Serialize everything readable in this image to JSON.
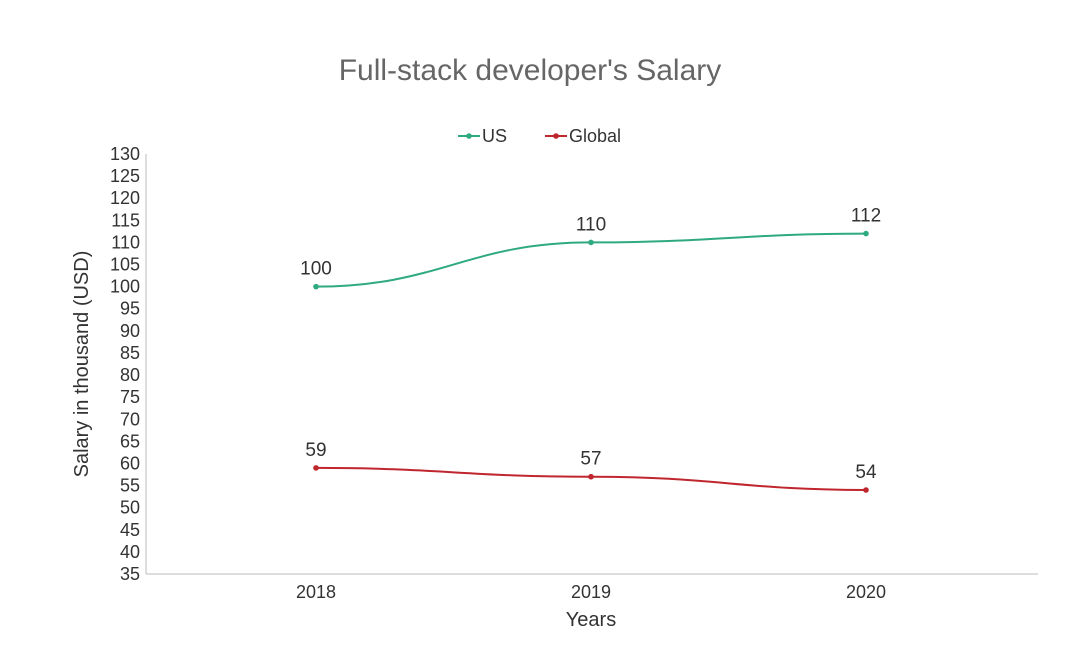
{
  "chart_data": {
    "type": "line",
    "title": "Full-stack developer's Salary",
    "xlabel": "Years",
    "ylabel": "Salary in thousand (USD)",
    "categories": [
      "2018",
      "2019",
      "2020"
    ],
    "ylim": [
      35,
      130
    ],
    "ytick_step": 5,
    "grid": false,
    "legend_position": "top",
    "series": [
      {
        "name": "US",
        "values": [
          100,
          110,
          112
        ],
        "color": "#2EAA7E"
      },
      {
        "name": "Global",
        "values": [
          59,
          57,
          54
        ],
        "color": "#C0262D"
      }
    ]
  }
}
